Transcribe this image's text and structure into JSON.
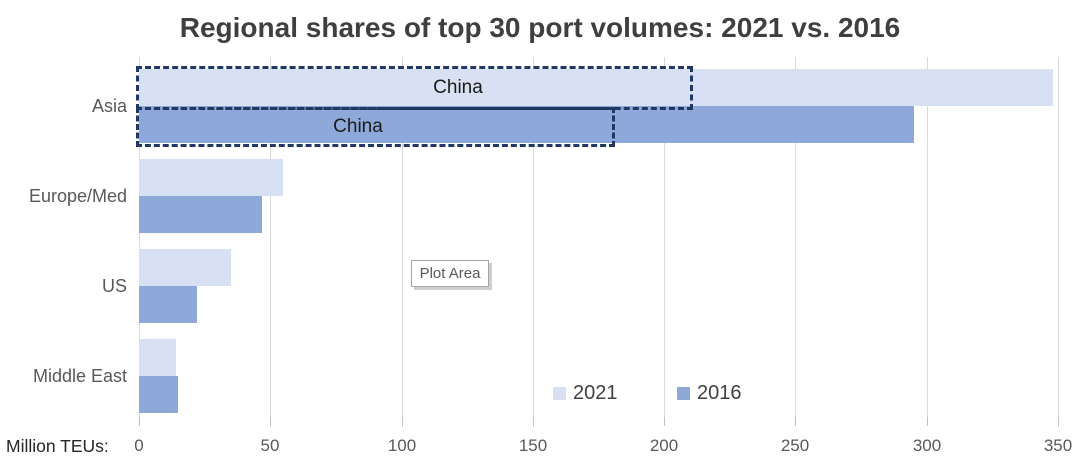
{
  "title": "Regional shares of top 30 port volumes: 2021 vs. 2016",
  "axis": {
    "unit_label": "Million TEUs:",
    "tick_values": [
      0,
      50,
      100,
      150,
      200,
      250,
      300,
      350
    ]
  },
  "legend": {
    "items": [
      {
        "label": "2021",
        "color": "#d8e1f3"
      },
      {
        "label": "2016",
        "color": "#8ea9d9"
      }
    ]
  },
  "plot_area_tooltip": "Plot Area",
  "chart_data": {
    "type": "bar",
    "orientation": "horizontal",
    "title": "Regional shares of top 30 port volumes: 2021 vs. 2016",
    "xlabel": "Million TEUs:",
    "ylabel": "",
    "xlim": [
      0,
      350
    ],
    "xticks": [
      0,
      50,
      100,
      150,
      200,
      250,
      300,
      350
    ],
    "grid": "vertical",
    "legend_position": "inside-bottom-center",
    "categories": [
      "Asia",
      "Europe/Med",
      "US",
      "Middle East"
    ],
    "series": [
      {
        "name": "2021",
        "color": "#d8e1f3",
        "values": [
          348,
          55,
          35,
          14
        ]
      },
      {
        "name": "2016",
        "color": "#8ea9d9",
        "values": [
          295,
          47,
          22,
          15
        ]
      }
    ],
    "annotations": [
      {
        "label": "China",
        "series": "2021",
        "category": "Asia",
        "value": 210,
        "style": "dashed-box",
        "border_color": "#1f3864"
      },
      {
        "label": "China",
        "series": "2016",
        "category": "Asia",
        "value": 180,
        "style": "dashed-box",
        "border_color": "#1f3864"
      }
    ]
  },
  "colors": {
    "series_2021": "#d8e1f3",
    "series_2016": "#8ea9d9",
    "dashed_box": "#1f3864",
    "gridline": "#d9d9d9",
    "title_text": "#3f3f3f",
    "axis_text": "#595959"
  }
}
